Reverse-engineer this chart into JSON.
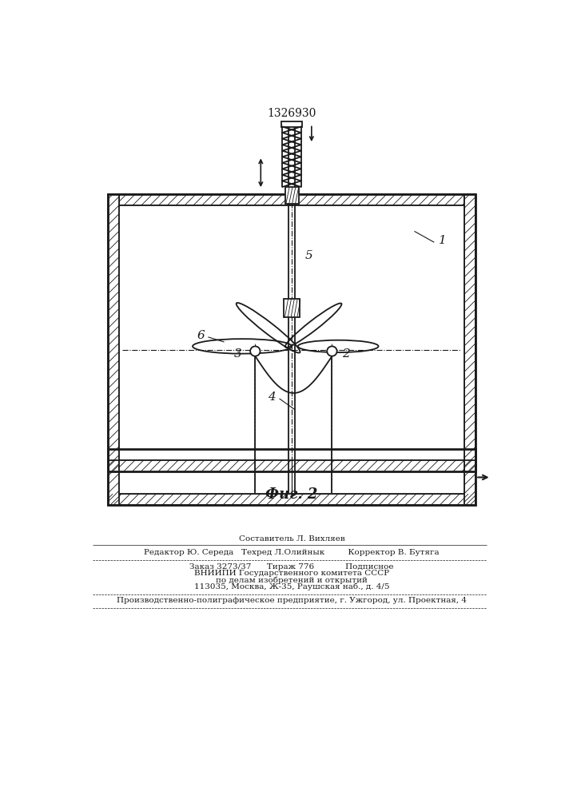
{
  "patent_number": "1326930",
  "fig_label": "Фиг. 2",
  "footer_lines": [
    "Составитель Л. Вихляев",
    "Редактор Ю. Середа   Техред Л.Олийнык         Корректор В. Бутяга",
    "Заказ 3273/37      Тираж 776            Подписное",
    "ВНИИПИ Государственного комитета СССР",
    "по делам изобретений и открытий",
    "113035, Москва, Ж-35, Раушская наб., д. 4/5",
    "Производственно-полиграфическое предприятие, г. Ужгород, ул. Проектная, 4"
  ],
  "bg_color": "#ffffff",
  "line_color": "#1a1a1a"
}
